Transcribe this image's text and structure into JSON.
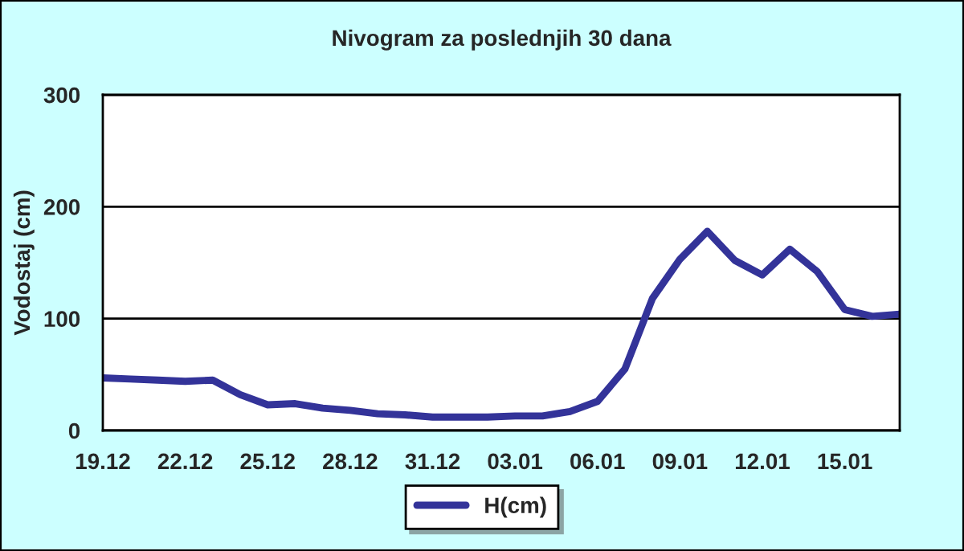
{
  "chart_data": {
    "type": "line",
    "title": "Nivogram za poslednjih 30 dana",
    "ylabel": "Vodostaj (cm)",
    "categories": [
      "19.12",
      null,
      null,
      "22.12",
      null,
      null,
      "25.12",
      null,
      null,
      "28.12",
      null,
      null,
      "31.12",
      null,
      null,
      "03.01",
      null,
      null,
      "06.01",
      null,
      null,
      "09.01",
      null,
      null,
      "12.01",
      null,
      null,
      "15.01",
      null,
      null
    ],
    "series": [
      {
        "name": "H(cm)",
        "color": "#333399",
        "values": [
          47,
          46,
          45,
          44,
          45,
          32,
          23,
          24,
          20,
          18,
          15,
          14,
          12,
          12,
          12,
          13,
          13,
          17,
          26,
          55,
          118,
          153,
          178,
          152,
          139,
          162,
          142,
          108,
          102,
          104
        ]
      }
    ],
    "ylim": [
      0,
      300
    ],
    "yticks": [
      0,
      100,
      200,
      300
    ],
    "grid": "y",
    "legend": "bottom",
    "marker": "none",
    "line_style": "solid"
  }
}
